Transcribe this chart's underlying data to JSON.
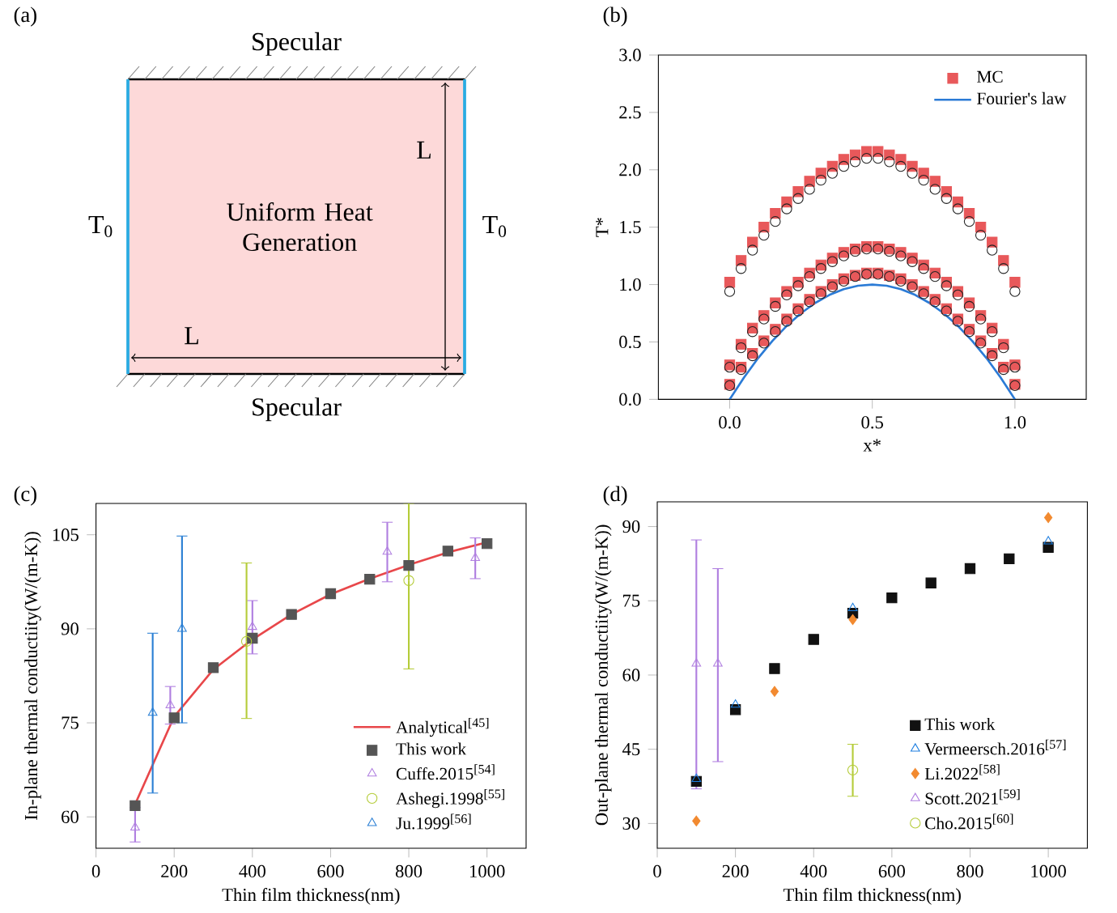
{
  "chart_data": [
    {
      "type": "other",
      "title": "(a)",
      "annotations": [
        "Specular",
        "Specular",
        "T$_{0}$",
        "T$_{0}$",
        "L",
        "L",
        "Uniform Heat Generation"
      ]
    },
    {
      "type": "scatter",
      "title": "(b)",
      "xlabel": "x*",
      "ylabel": "T*",
      "xlim": [
        -0.25,
        1.25
      ],
      "ylim": [
        0,
        3
      ],
      "xticks": [
        {
          "value": 0,
          "label": "0.0"
        },
        0.5,
        {
          "value": 1,
          "label": "1.0"
        }
      ],
      "yticks": [
        {
          "value": 0,
          "label": "0.0"
        },
        0.5,
        {
          "value": 1,
          "label": "1.0"
        },
        1.5,
        {
          "value": 2,
          "label": "2.0"
        },
        2.5,
        {
          "value": 3,
          "label": "3.0"
        }
      ],
      "legend": "top right",
      "series": [
        {
          "name": "MC",
          "color": "#e8585a",
          "marker": "square",
          "x": [
            0,
            0.04,
            0.08,
            0.12,
            0.16,
            0.2,
            0.24,
            0.28,
            0.32,
            0.36,
            0.4,
            0.44,
            0.48,
            0.52,
            0.56,
            0.6,
            0.64,
            0.68,
            0.72,
            0.76,
            0.8,
            0.84,
            0.88,
            0.92,
            0.96,
            1.0,
            0,
            0.04,
            0.08,
            0.12,
            0.16,
            0.2,
            0.24,
            0.28,
            0.32,
            0.36,
            0.4,
            0.44,
            0.48,
            0.52,
            0.56,
            0.6,
            0.64,
            0.68,
            0.72,
            0.76,
            0.8,
            0.84,
            0.88,
            0.92,
            0.96,
            1.0,
            0,
            0.04,
            0.08,
            0.12,
            0.16,
            0.2,
            0.24,
            0.28,
            0.32,
            0.36,
            0.4,
            0.44,
            0.48,
            0.52,
            0.56,
            0.6,
            0.64,
            0.68,
            0.72,
            0.76,
            0.8,
            0.84,
            0.88,
            0.92,
            0.96,
            1.0
          ],
          "values": [
            1.02,
            1.21,
            1.37,
            1.5,
            1.62,
            1.72,
            1.81,
            1.9,
            1.97,
            2.03,
            2.09,
            2.13,
            2.16,
            2.16,
            2.13,
            2.09,
            2.03,
            1.97,
            1.9,
            1.81,
            1.72,
            1.62,
            1.5,
            1.37,
            1.21,
            1.02,
            0.3,
            0.48,
            0.62,
            0.73,
            0.84,
            0.94,
            1.02,
            1.1,
            1.17,
            1.23,
            1.28,
            1.31,
            1.33,
            1.33,
            1.31,
            1.28,
            1.23,
            1.17,
            1.1,
            1.02,
            0.94,
            0.84,
            0.73,
            0.62,
            0.48,
            0.3,
            0.13,
            0.28,
            0.4,
            0.51,
            0.61,
            0.7,
            0.79,
            0.87,
            0.94,
            1.0,
            1.05,
            1.08,
            1.1,
            1.1,
            1.08,
            1.05,
            1.0,
            0.94,
            0.87,
            0.79,
            0.7,
            0.61,
            0.51,
            0.4,
            0.28,
            0.13
          ]
        },
        {
          "color": "#222222",
          "marker": "circle",
          "x": [
            0,
            0.04,
            0.08,
            0.12,
            0.16,
            0.2,
            0.24,
            0.28,
            0.32,
            0.36,
            0.4,
            0.44,
            0.48,
            0.52,
            0.56,
            0.6,
            0.64,
            0.68,
            0.72,
            0.76,
            0.8,
            0.84,
            0.88,
            0.92,
            0.96,
            1.0,
            0,
            0.04,
            0.08,
            0.12,
            0.16,
            0.2,
            0.24,
            0.28,
            0.32,
            0.36,
            0.4,
            0.44,
            0.48,
            0.52,
            0.56,
            0.6,
            0.64,
            0.68,
            0.72,
            0.76,
            0.8,
            0.84,
            0.88,
            0.92,
            0.96,
            1.0,
            0,
            0.04,
            0.08,
            0.12,
            0.16,
            0.2,
            0.24,
            0.28,
            0.32,
            0.36,
            0.4,
            0.44,
            0.48,
            0.52,
            0.56,
            0.6,
            0.64,
            0.68,
            0.72,
            0.76,
            0.8,
            0.84,
            0.88,
            0.92,
            0.96,
            1.0
          ],
          "values": [
            0.94,
            1.14,
            1.3,
            1.43,
            1.55,
            1.66,
            1.75,
            1.83,
            1.91,
            1.97,
            2.03,
            2.07,
            2.1,
            2.1,
            2.07,
            2.03,
            1.97,
            1.91,
            1.83,
            1.75,
            1.66,
            1.55,
            1.43,
            1.3,
            1.14,
            0.94,
            0.28,
            0.45,
            0.59,
            0.7,
            0.81,
            0.91,
            0.99,
            1.07,
            1.14,
            1.2,
            1.25,
            1.29,
            1.31,
            1.31,
            1.29,
            1.25,
            1.2,
            1.14,
            1.07,
            0.99,
            0.91,
            0.81,
            0.7,
            0.59,
            0.45,
            0.28,
            0.12,
            0.26,
            0.38,
            0.49,
            0.59,
            0.68,
            0.77,
            0.85,
            0.92,
            0.98,
            1.03,
            1.07,
            1.09,
            1.09,
            1.07,
            1.03,
            0.98,
            0.92,
            0.85,
            0.77,
            0.68,
            0.59,
            0.49,
            0.38,
            0.26,
            0.12
          ]
        },
        {
          "name": "Fourier's law",
          "type": "line",
          "color": "#2b7bd6",
          "marker": "none",
          "x": [
            0,
            0.05,
            0.1,
            0.15,
            0.2,
            0.25,
            0.3,
            0.35,
            0.4,
            0.45,
            0.5,
            0.55,
            0.6,
            0.65,
            0.7,
            0.75,
            0.8,
            0.85,
            0.9,
            0.95,
            1.0
          ],
          "values": [
            0,
            0.19,
            0.36,
            0.51,
            0.64,
            0.75,
            0.84,
            0.91,
            0.96,
            0.99,
            1.0,
            0.99,
            0.96,
            0.91,
            0.84,
            0.75,
            0.64,
            0.51,
            0.36,
            0.19,
            0
          ]
        }
      ]
    },
    {
      "type": "scatter",
      "title": "(c)",
      "xlabel": "Thin film thickness(nm)",
      "ylabel": "In-plane thermal conductiity(W/(m-K))",
      "xlim": [
        0,
        1100
      ],
      "ylim": [
        55,
        110
      ],
      "xticks": [
        0,
        200,
        400,
        600,
        800,
        1000
      ],
      "yticks": [
        60,
        75,
        90,
        105
      ],
      "legend": "bottom right",
      "series": [
        {
          "name": "Analytical$^{[45]}$",
          "type": "line",
          "color": "#e8474a",
          "marker": "none",
          "x": [
            100,
            200,
            300,
            400,
            500,
            600,
            700,
            800,
            900,
            1000
          ],
          "values": [
            62,
            76,
            83.5,
            88.3,
            92.3,
            95.5,
            98,
            100.2,
            102.2,
            103.8
          ]
        },
        {
          "name": "This work",
          "color": "#555555",
          "marker": "square",
          "x": [
            100,
            200,
            300,
            400,
            500,
            600,
            700,
            800,
            900,
            1000
          ],
          "values": [
            61.8,
            75.8,
            83.8,
            88.5,
            92.3,
            95.6,
            97.9,
            100.1,
            102.4,
            103.6
          ]
        },
        {
          "name": "Cuffe.2015$^{[54]}$",
          "color": "#b07fe0",
          "marker": "triangle",
          "x": [
            100,
            190,
            400,
            745,
            970
          ],
          "values": [
            58.3,
            77.8,
            90.3,
            102.3,
            101.3
          ],
          "errors": [
            [
              56,
              61.5
            ],
            [
              74.8,
              80.8
            ],
            [
              86,
              94.5
            ],
            [
              97.5,
              107
            ],
            [
              98,
              104.5
            ]
          ]
        },
        {
          "name": "Ashegi.1998$^{[55]}$",
          "color": "#b5cc3a",
          "marker": "circle",
          "x": [
            385,
            800
          ],
          "values": [
            88,
            97.7
          ],
          "errors": [
            [
              75.7,
              100.5
            ],
            [
              83.6,
              110
            ]
          ]
        },
        {
          "name": "Ju.1999$^{[56]}$",
          "color": "#2a7fd4",
          "marker": "triangle",
          "x": [
            145,
            220
          ],
          "values": [
            76.6,
            90
          ],
          "errors": [
            [
              63.8,
              89.3
            ],
            [
              75,
              104.8
            ]
          ]
        }
      ]
    },
    {
      "type": "scatter",
      "title": "(d)",
      "xlabel": "Thin film thickness(nm)",
      "ylabel": "Out-plane thermal conductiity(W/(m-K))",
      "xlim": [
        0,
        1100
      ],
      "ylim": [
        25,
        95
      ],
      "xticks": [
        0,
        200,
        400,
        600,
        800,
        1000
      ],
      "yticks": [
        30,
        45,
        60,
        75,
        90
      ],
      "legend": "bottom right",
      "series": [
        {
          "name": "This work",
          "color": "#111111",
          "marker": "square",
          "x": [
            100,
            200,
            300,
            400,
            500,
            600,
            700,
            800,
            900,
            1000
          ],
          "values": [
            38.5,
            53,
            61.3,
            67.2,
            72.5,
            75.6,
            78.6,
            81.5,
            83.5,
            85.8
          ]
        },
        {
          "name": "Vermeersch.2016$^{[57]}$",
          "color": "#1e7fe0",
          "marker": "triangle",
          "x": [
            100,
            200,
            500,
            1000
          ],
          "values": [
            39,
            54,
            73.5,
            87
          ]
        },
        {
          "name": "Li.2022$^{[58]}$",
          "color": "#f28a30",
          "marker": "diamond",
          "x": [
            100,
            300,
            500,
            1000
          ],
          "values": [
            30.5,
            56.7,
            71.2,
            91.8
          ]
        },
        {
          "name": "Scott.2021$^{[59]}$",
          "color": "#b07fe0",
          "marker": "triangle",
          "x": [
            100,
            155
          ],
          "values": [
            62.3,
            62.3
          ],
          "errors": [
            [
              37,
              87.3
            ],
            [
              42.5,
              81.5
            ]
          ]
        },
        {
          "name": "Cho.2015$^{[60]}$",
          "color": "#b5cc3a",
          "marker": "circle",
          "x": [
            500
          ],
          "values": [
            40.8
          ],
          "errors": [
            [
              35.5,
              46
            ]
          ]
        }
      ]
    }
  ]
}
